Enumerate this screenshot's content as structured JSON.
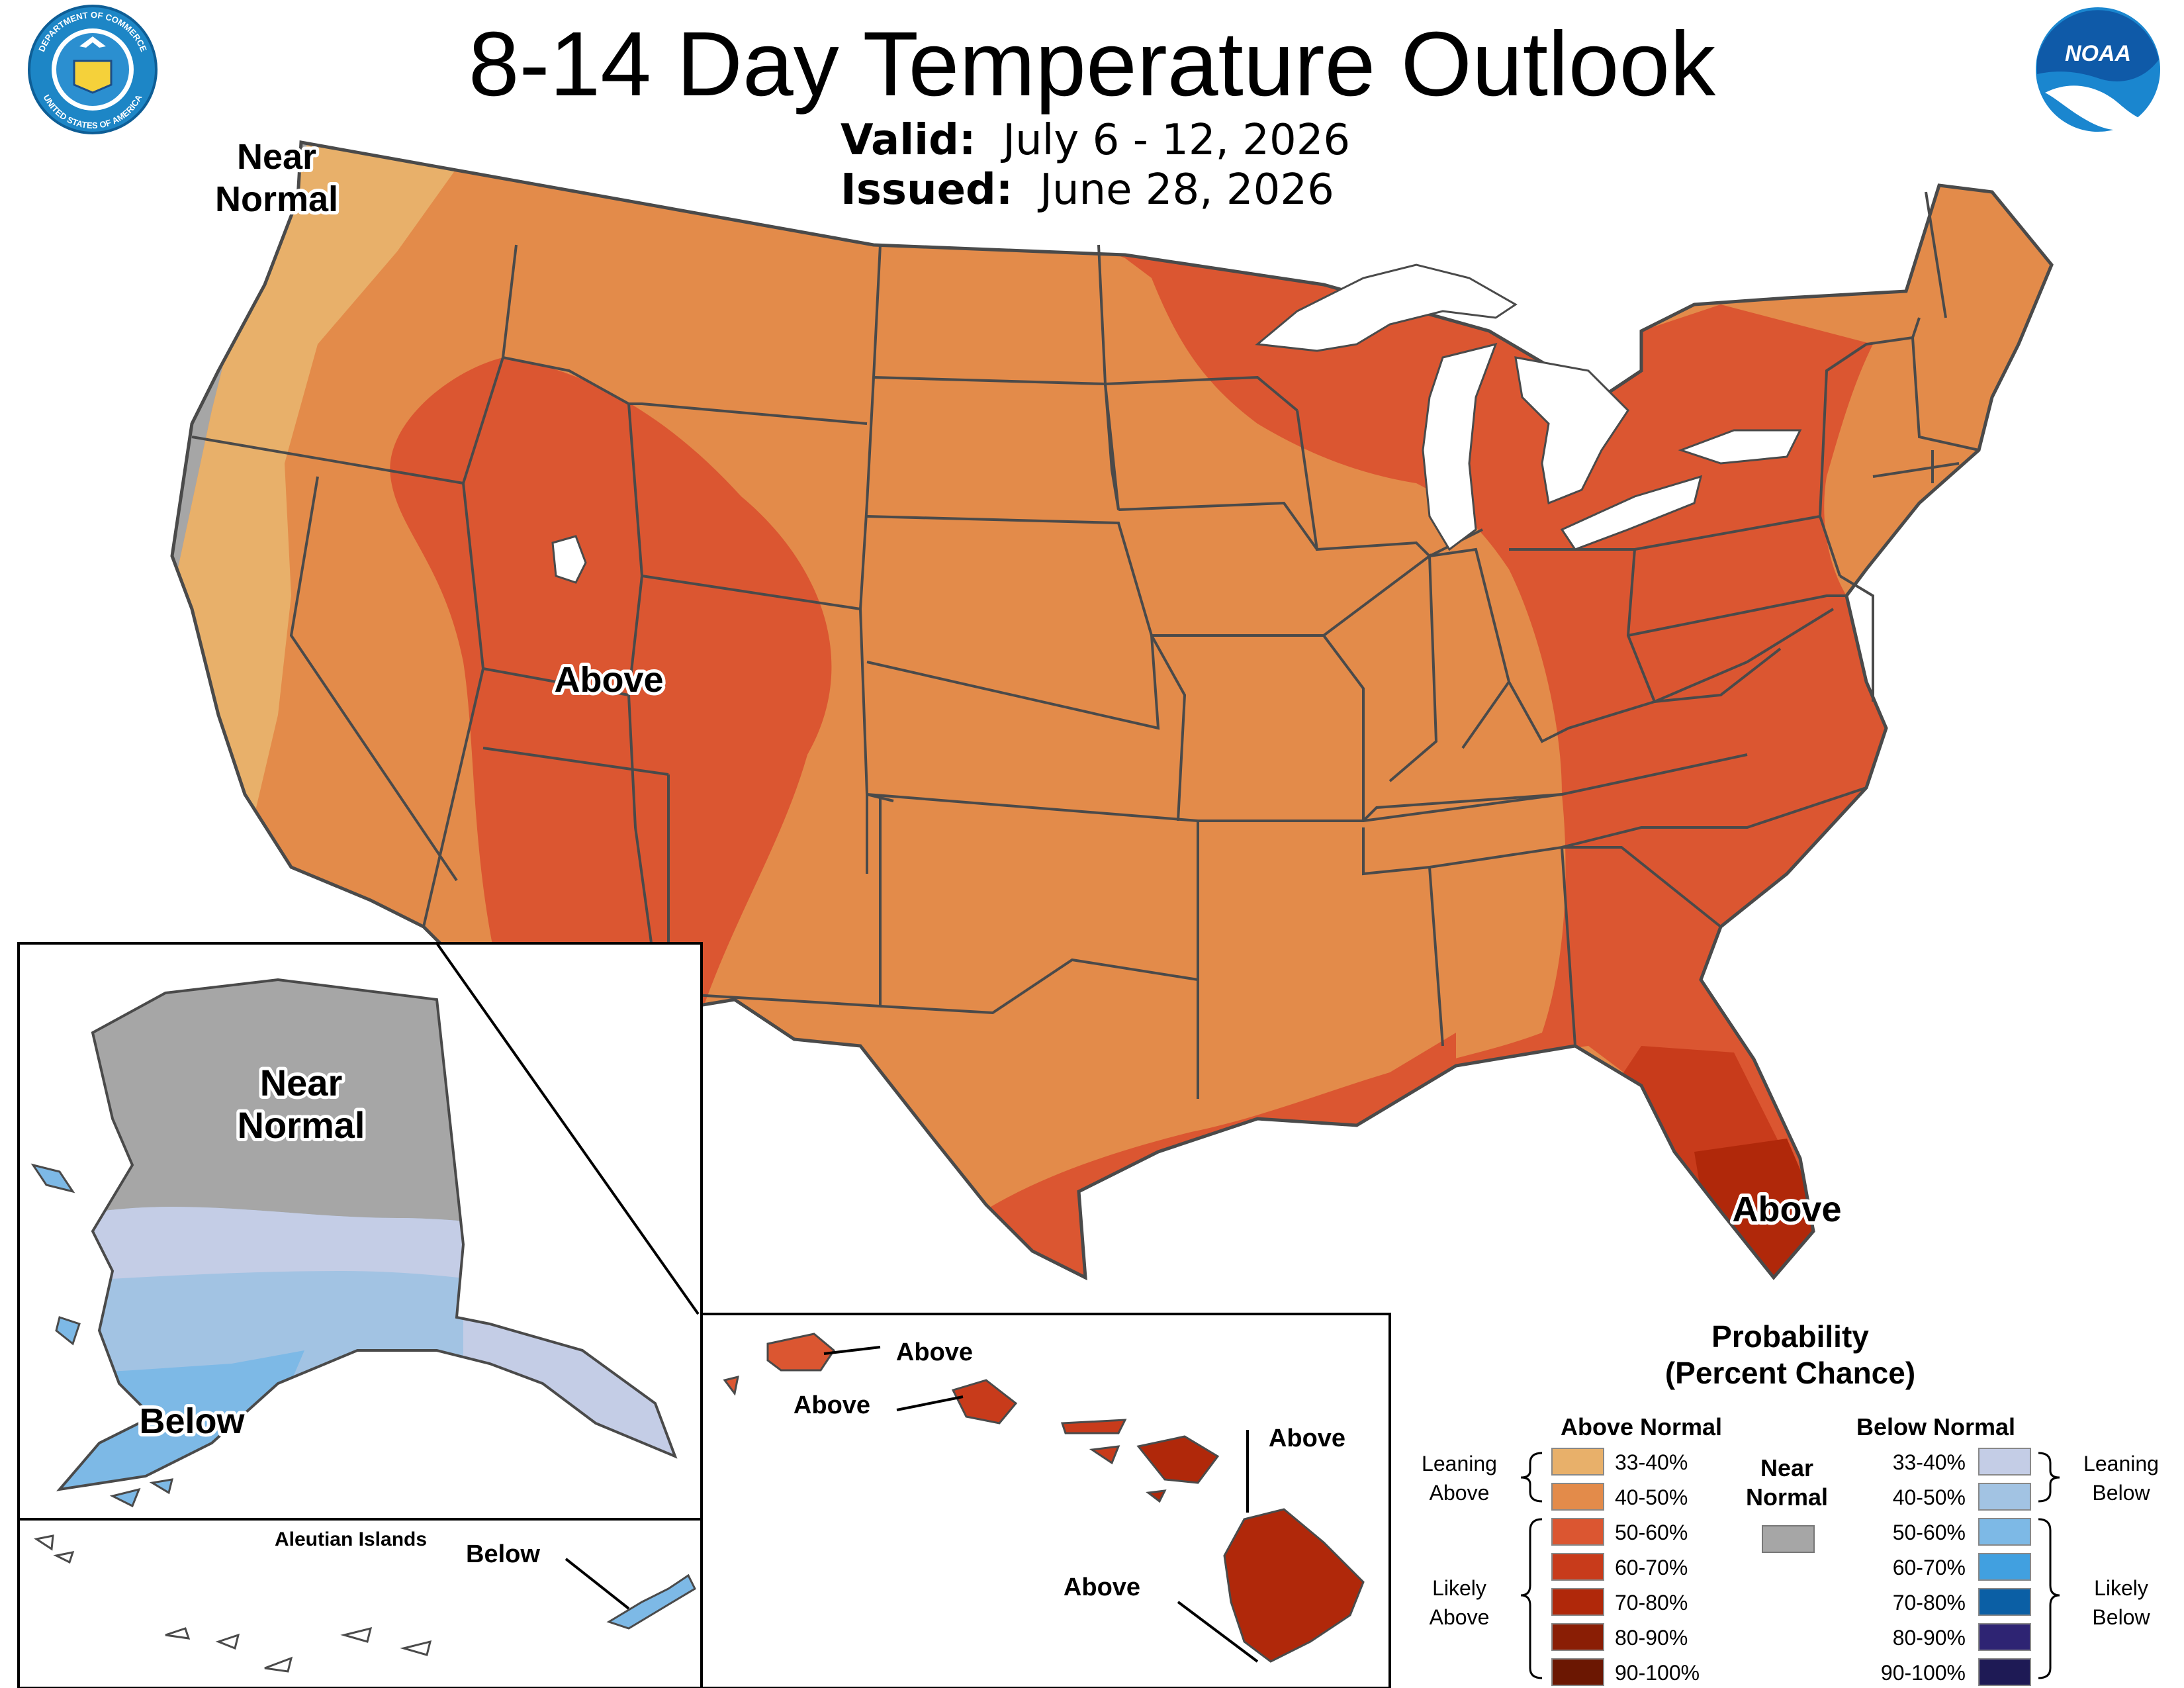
{
  "header": {
    "title": "8-14 Day Temperature Outlook",
    "valid_label": "Valid:",
    "valid_value": "July 6 - 12, 2026",
    "issued_label": "Issued:",
    "issued_value": "June 28, 2026"
  },
  "logos": {
    "commerce_text_top": "DEPARTMENT OF COMMERCE",
    "commerce_text_bottom": "UNITED STATES OF AMERICA",
    "noaa_text": "NOAA"
  },
  "map_labels": {
    "conus_northwest": "Near\nNormal",
    "conus_utah": "Above",
    "conus_florida": "Above",
    "alaska_north": "Near\nNormal",
    "alaska_south": "Below",
    "aleutian_title": "Aleutian Islands",
    "aleutian_below": "Below",
    "hawaii_kauai": "Above",
    "hawaii_oahu": "Above",
    "hawaii_maui": "Above",
    "hawaii_big_island": "Above"
  },
  "legend": {
    "title_line1": "Probability",
    "title_line2": "(Percent Chance)",
    "above_header": "Above Normal",
    "below_header": "Below Normal",
    "near_header": "Near\nNormal",
    "leaning_above": "Leaning\nAbove",
    "likely_above": "Likely\nAbove",
    "leaning_below": "Leaning\nBelow",
    "likely_below": "Likely\nBelow",
    "above_items": [
      {
        "label": "33-40%",
        "color": "#e8b06a"
      },
      {
        "label": "40-50%",
        "color": "#e38b4a"
      },
      {
        "label": "50-60%",
        "color": "#db5631"
      },
      {
        "label": "60-70%",
        "color": "#c83b1b"
      },
      {
        "label": "70-80%",
        "color": "#b0280a"
      },
      {
        "label": "80-90%",
        "color": "#8a1e05"
      },
      {
        "label": "90-100%",
        "color": "#6b1702"
      }
    ],
    "below_items": [
      {
        "label": "33-40%",
        "color": "#c4cde6"
      },
      {
        "label": "40-50%",
        "color": "#a2c3e3"
      },
      {
        "label": "50-60%",
        "color": "#7db9e6"
      },
      {
        "label": "60-70%",
        "color": "#41a0e0"
      },
      {
        "label": "70-80%",
        "color": "#0b5fa5"
      },
      {
        "label": "80-90%",
        "color": "#2e2473"
      },
      {
        "label": "90-100%",
        "color": "#1e1a55"
      }
    ],
    "near_color": "#a6a6a6"
  }
}
